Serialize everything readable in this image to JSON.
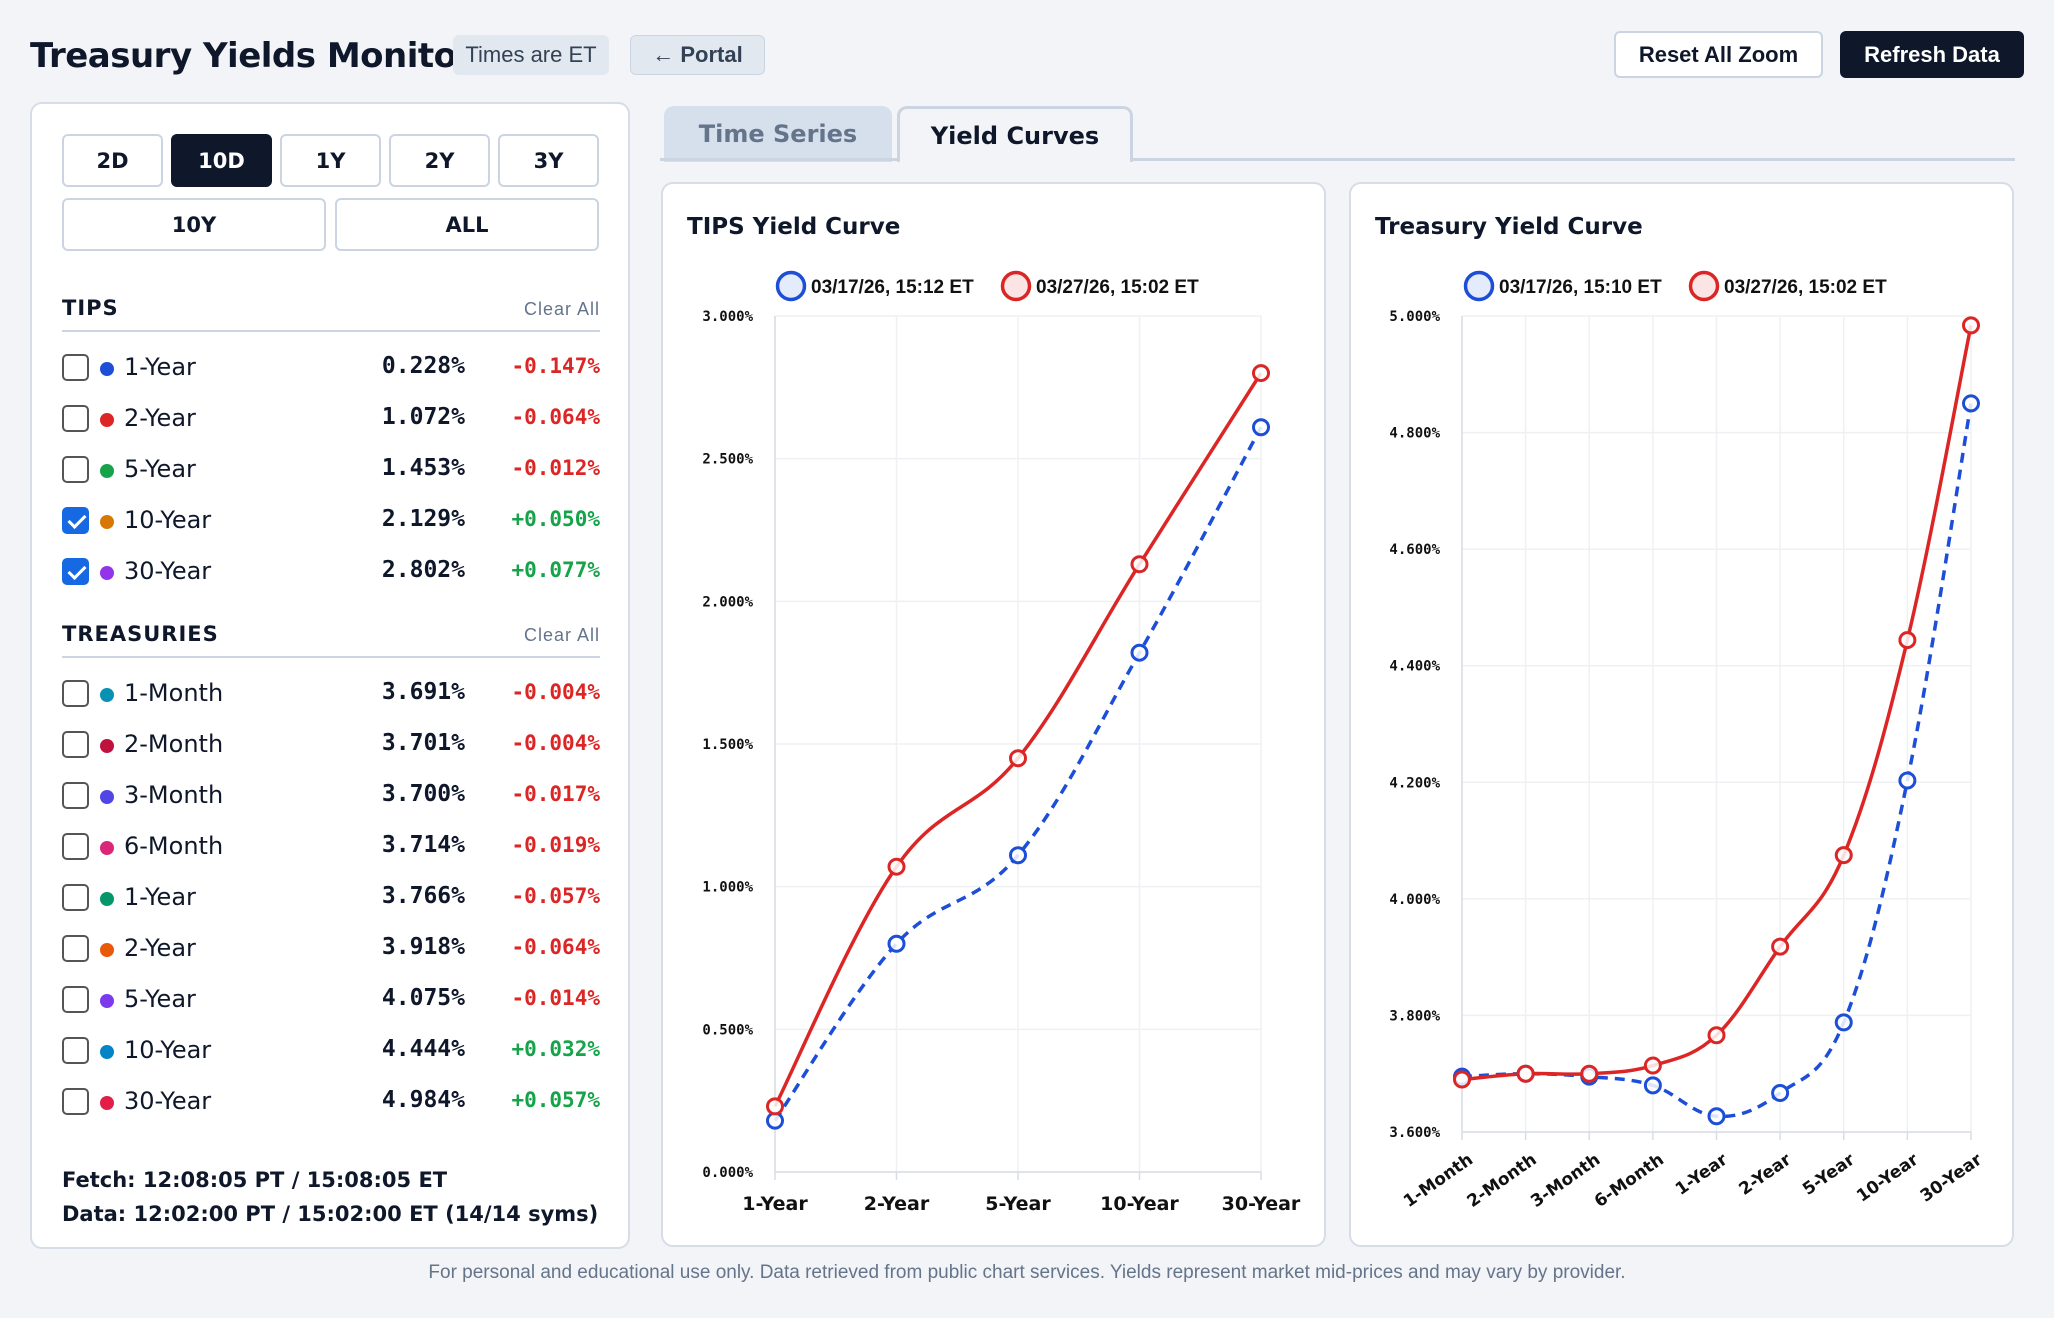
{
  "header": {
    "title": "Treasury Yields Monitor",
    "times_chip": "Times are ET",
    "portal_button": "← Portal",
    "reset_zoom_button": "Reset All Zoom",
    "refresh_button": "Refresh Data"
  },
  "ranges": [
    {
      "label": "2D",
      "active": false
    },
    {
      "label": "10D",
      "active": true
    },
    {
      "label": "1Y",
      "active": false
    },
    {
      "label": "2Y",
      "active": false
    },
    {
      "label": "3Y",
      "active": false
    },
    {
      "label": "10Y",
      "active": false
    },
    {
      "label": "ALL",
      "active": false
    }
  ],
  "tips": {
    "title": "TIPS",
    "clear": "Clear All",
    "items": [
      {
        "label": "1-Year",
        "value": "0.228%",
        "change": "-0.147%",
        "checked": false,
        "color": "#1d4ed8"
      },
      {
        "label": "2-Year",
        "value": "1.072%",
        "change": "-0.064%",
        "checked": false,
        "color": "#dc2626"
      },
      {
        "label": "5-Year",
        "value": "1.453%",
        "change": "-0.012%",
        "checked": false,
        "color": "#16a34a"
      },
      {
        "label": "10-Year",
        "value": "2.129%",
        "change": "+0.050%",
        "checked": true,
        "color": "#d97706"
      },
      {
        "label": "30-Year",
        "value": "2.802%",
        "change": "+0.077%",
        "checked": true,
        "color": "#9333ea"
      }
    ]
  },
  "treasuries": {
    "title": "TREASURIES",
    "clear": "Clear All",
    "items": [
      {
        "label": "1-Month",
        "value": "3.691%",
        "change": "-0.004%",
        "checked": false,
        "color": "#0891b2"
      },
      {
        "label": "2-Month",
        "value": "3.701%",
        "change": "-0.004%",
        "checked": false,
        "color": "#be123c"
      },
      {
        "label": "3-Month",
        "value": "3.700%",
        "change": "-0.017%",
        "checked": false,
        "color": "#4f46e5"
      },
      {
        "label": "6-Month",
        "value": "3.714%",
        "change": "-0.019%",
        "checked": false,
        "color": "#db2777"
      },
      {
        "label": "1-Year",
        "value": "3.766%",
        "change": "-0.057%",
        "checked": false,
        "color": "#059669"
      },
      {
        "label": "2-Year",
        "value": "3.918%",
        "change": "-0.064%",
        "checked": false,
        "color": "#ea580c"
      },
      {
        "label": "5-Year",
        "value": "4.075%",
        "change": "-0.014%",
        "checked": false,
        "color": "#7c3aed"
      },
      {
        "label": "10-Year",
        "value": "4.444%",
        "change": "+0.032%",
        "checked": false,
        "color": "#0284c7"
      },
      {
        "label": "30-Year",
        "value": "4.984%",
        "change": "+0.057%",
        "checked": false,
        "color": "#e11d48"
      }
    ]
  },
  "status": {
    "fetch": "Fetch: 12:08:05 PT / 15:08:05 ET",
    "data": "Data: 12:02:00 PT / 15:02:00 ET (14/14 syms)"
  },
  "tabs": {
    "time_series": "Time Series",
    "yield_curves": "Yield Curves"
  },
  "colors": {
    "older": "#1d4ed8",
    "newer": "#dc2626",
    "dark": "#0f172a"
  },
  "chart_data": [
    {
      "type": "line",
      "title": "TIPS Yield Curve",
      "categories": [
        "1-Year",
        "2-Year",
        "5-Year",
        "10-Year",
        "30-Year"
      ],
      "series": [
        {
          "name": "03/17/26, 15:12 ET",
          "values": [
            0.18,
            0.8,
            1.11,
            1.82,
            2.61
          ],
          "style": "dashed",
          "color": "#1d4ed8"
        },
        {
          "name": "03/27/26, 15:02 ET",
          "values": [
            0.23,
            1.07,
            1.45,
            2.13,
            2.8
          ],
          "style": "solid",
          "color": "#dc2626"
        }
      ],
      "yticks": [
        "0.000%",
        "0.500%",
        "1.000%",
        "1.500%",
        "2.000%",
        "2.500%",
        "3.000%"
      ],
      "ylim": [
        0,
        3
      ],
      "grid": true,
      "legend": "top"
    },
    {
      "type": "line",
      "title": "Treasury Yield Curve",
      "categories": [
        "1-Month",
        "2-Month",
        "3-Month",
        "6-Month",
        "1-Year",
        "2-Year",
        "5-Year",
        "10-Year",
        "30-Year"
      ],
      "series": [
        {
          "name": "03/17/26, 15:10 ET",
          "values": [
            3.695,
            3.7,
            3.695,
            3.68,
            3.627,
            3.667,
            3.788,
            4.203,
            4.85
          ],
          "style": "dashed",
          "color": "#1d4ed8"
        },
        {
          "name": "03/27/26, 15:02 ET",
          "values": [
            3.69,
            3.7,
            3.7,
            3.714,
            3.766,
            3.918,
            4.075,
            4.444,
            4.984
          ],
          "style": "solid",
          "color": "#dc2626"
        }
      ],
      "yticks": [
        "3.600%",
        "3.800%",
        "4.000%",
        "4.200%",
        "4.400%",
        "4.600%",
        "4.800%",
        "5.000%"
      ],
      "ylim": [
        3.6,
        5.0
      ],
      "grid": true,
      "legend": "top"
    }
  ],
  "footer": "For personal and educational use only. Data retrieved from public chart services. Yields represent market mid-prices and may vary by provider."
}
